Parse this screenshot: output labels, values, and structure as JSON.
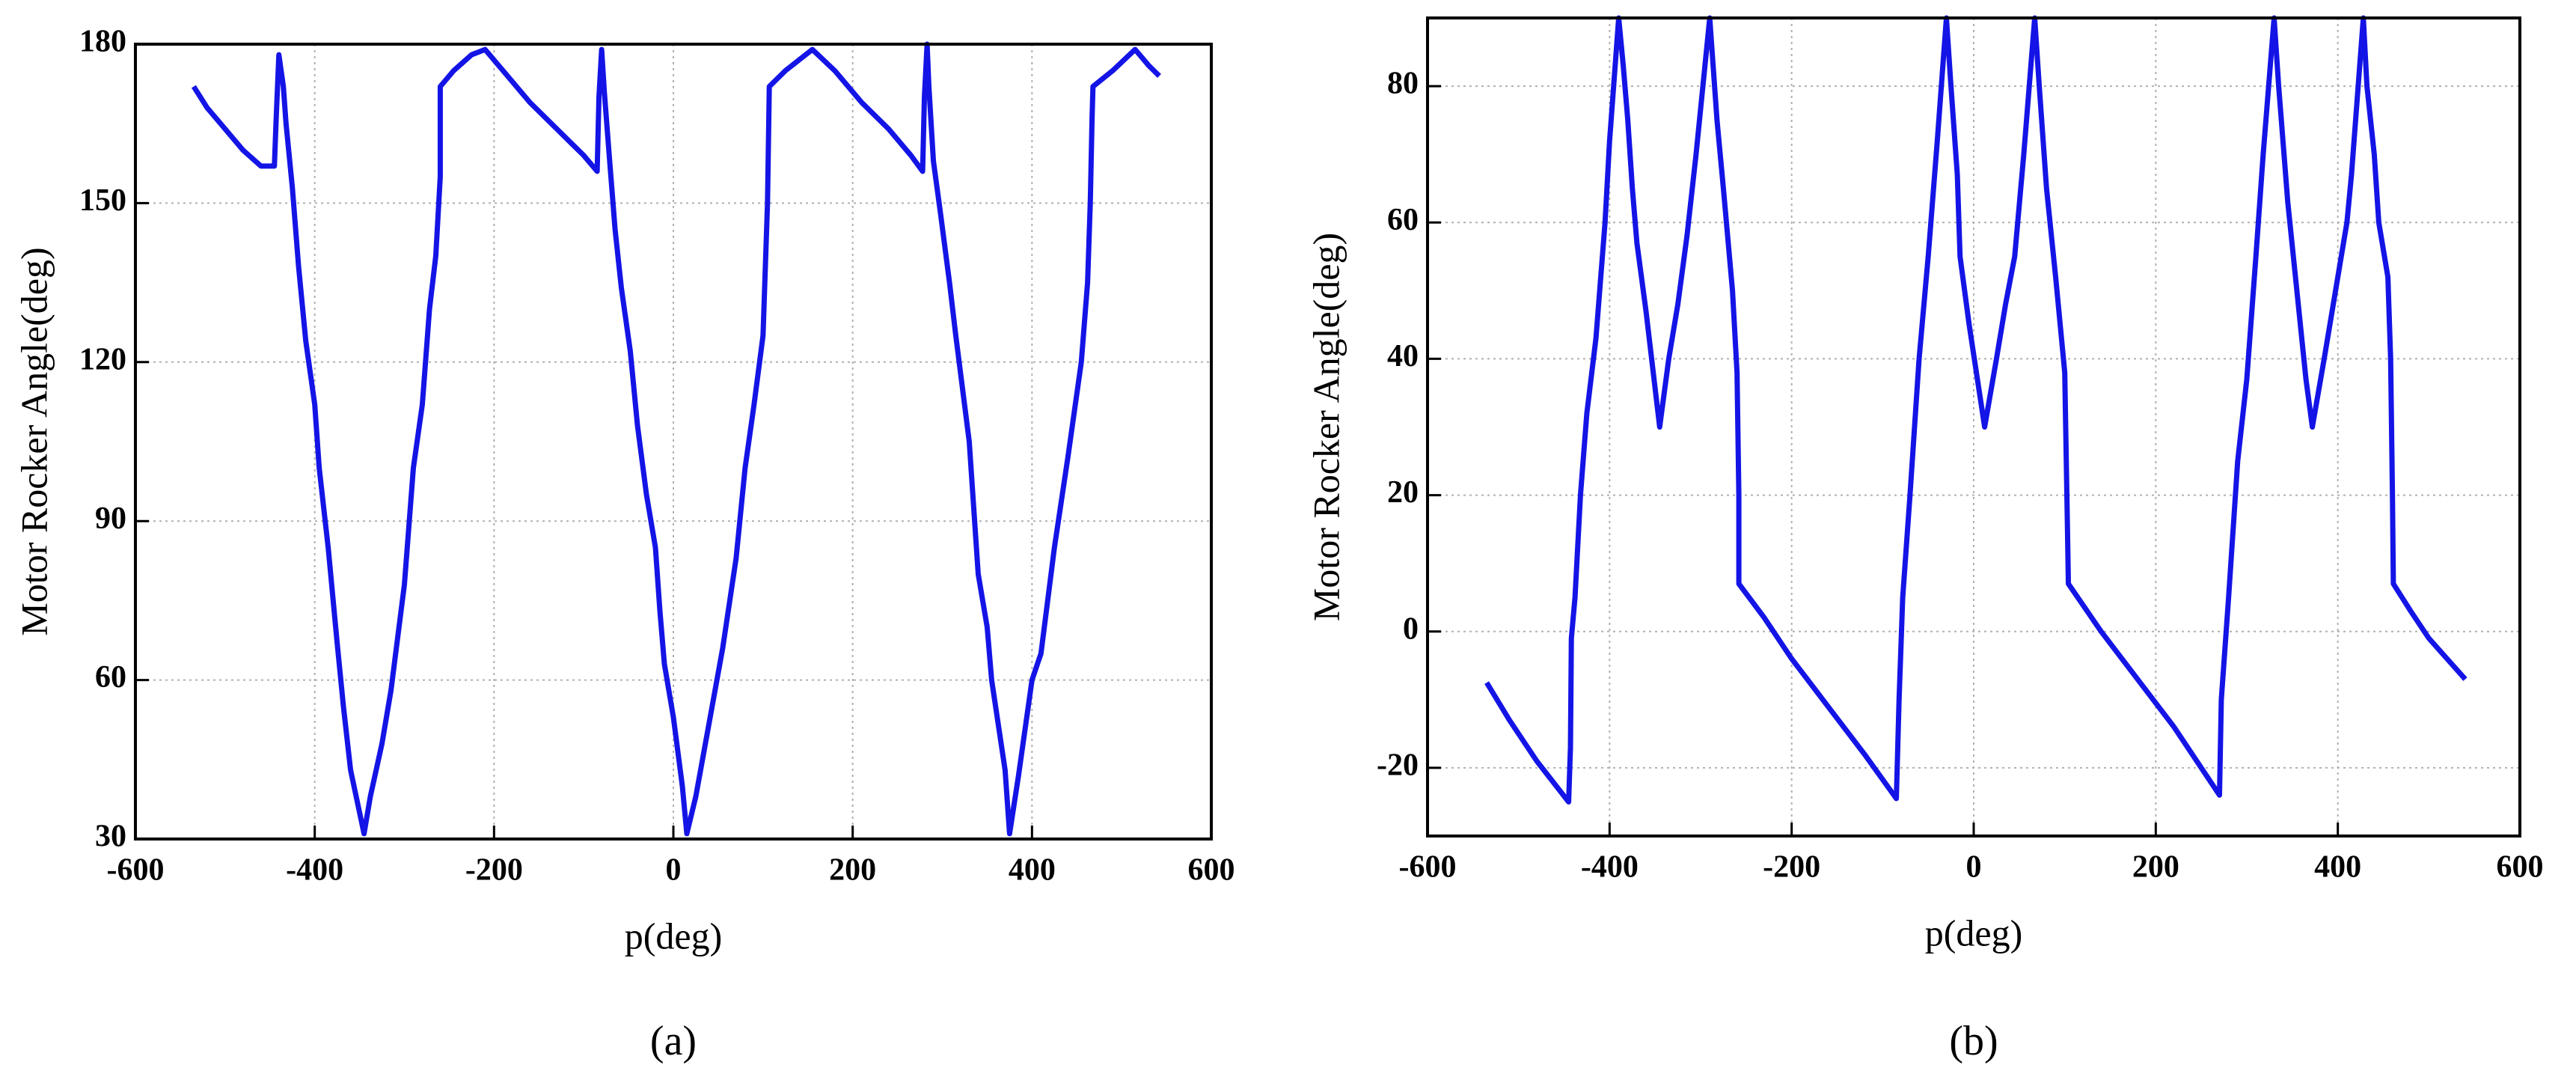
{
  "chart_data": [
    {
      "type": "line",
      "caption": "(a)",
      "xlabel": "p(deg)",
      "ylabel": "Motor Rocker Angle(deg)",
      "xlim": [
        -600,
        600
      ],
      "xticks": [
        -600,
        -400,
        -200,
        0,
        200,
        400,
        600
      ],
      "ylim": [
        30,
        180
      ],
      "yticks": [
        30,
        60,
        90,
        120,
        150,
        180
      ],
      "grid": true,
      "color": "#1414e6",
      "x": [
        -535,
        -520,
        -500,
        -480,
        -460,
        -445,
        -443,
        -440,
        -435,
        -432,
        -425,
        -418,
        -410,
        -400,
        -395,
        -385,
        -375,
        -368,
        -360,
        -345,
        -338,
        -325,
        -315,
        -300,
        -290,
        -280,
        -272,
        -265,
        -260,
        -260,
        -245,
        -225,
        -210,
        -190,
        -160,
        -130,
        -100,
        -85,
        -83,
        -80,
        -77,
        -72,
        -65,
        -58,
        -48,
        -40,
        -30,
        -20,
        -15,
        -10,
        0,
        10,
        15,
        25,
        40,
        55,
        70,
        80,
        90,
        100,
        105,
        107,
        125,
        155,
        180,
        210,
        240,
        265,
        278,
        280,
        283,
        285,
        290,
        298,
        308,
        315,
        330,
        340,
        350,
        355,
        370,
        375,
        385,
        400,
        410,
        425,
        440,
        455,
        462,
        465,
        467,
        468,
        490,
        515,
        530,
        542
      ],
      "values": [
        172,
        168,
        164,
        160,
        157,
        157,
        166,
        178,
        172,
        165,
        153,
        138,
        124,
        112,
        100,
        85,
        67,
        55,
        43,
        31,
        38,
        48,
        58,
        78,
        100,
        112,
        130,
        140,
        155,
        172,
        175,
        178,
        179,
        175,
        169,
        164,
        159,
        156,
        170,
        179,
        171,
        160,
        145,
        134,
        122,
        108,
        95,
        85,
        73,
        63,
        53,
        40,
        31,
        38,
        52,
        66,
        83,
        100,
        112,
        125,
        150,
        172,
        175,
        179,
        175,
        169,
        164,
        159,
        156,
        170,
        180,
        172,
        158,
        148,
        135,
        125,
        105,
        80,
        70,
        60,
        43,
        31,
        42,
        60,
        65,
        85,
        102,
        120,
        135,
        150,
        166,
        172,
        175,
        179,
        176,
        174
      ]
    },
    {
      "type": "line",
      "caption": "(b)",
      "xlabel": "p(deg)",
      "ylabel": "Motor Rocker Angle(deg)",
      "xlim": [
        -600,
        600
      ],
      "xticks": [
        -600,
        -400,
        -200,
        0,
        200,
        400,
        600
      ],
      "ylim": [
        -30,
        90
      ],
      "yticks": [
        -20,
        0,
        20,
        40,
        60,
        80
      ],
      "grid": true,
      "color": "#1414e6",
      "x": [
        -535,
        -510,
        -480,
        -445,
        -443,
        -442,
        -438,
        -432,
        -425,
        -415,
        -405,
        -400,
        -390,
        -385,
        -380,
        -375,
        -370,
        -360,
        -345,
        -335,
        -325,
        -315,
        -305,
        -290,
        -282,
        -275,
        -265,
        -260,
        -258,
        -258,
        -230,
        -200,
        -160,
        -120,
        -85,
        -82,
        -78,
        -70,
        -60,
        -50,
        -40,
        -30,
        -25,
        -18,
        -15,
        -5,
        12,
        25,
        35,
        45,
        55,
        67,
        72,
        80,
        90,
        100,
        103,
        104,
        140,
        180,
        220,
        250,
        270,
        272,
        280,
        290,
        300,
        310,
        318,
        330,
        335,
        345,
        355,
        365,
        372,
        385,
        400,
        410,
        415,
        428,
        432,
        440,
        445,
        455,
        458,
        460,
        461,
        480,
        500,
        520,
        540
      ],
      "values": [
        -7.5,
        -13,
        -19,
        -25,
        -17,
        -1,
        5,
        20,
        32,
        43,
        60,
        72,
        90,
        83,
        75,
        65,
        57,
        47,
        30,
        40,
        48,
        58,
        70,
        90,
        75,
        65,
        50,
        38,
        20,
        7,
        2,
        -4,
        -11,
        -18,
        -24.5,
        -10,
        5,
        20,
        40,
        55,
        72,
        90,
        80,
        67,
        55,
        45,
        30,
        40,
        48,
        55,
        70,
        90,
        80,
        65,
        52,
        38,
        15,
        7,
        0,
        -7,
        -14,
        -20,
        -24,
        -10,
        5,
        25,
        37,
        55,
        70,
        90,
        80,
        63,
        50,
        37,
        30,
        40,
        52,
        60,
        67,
        90,
        80,
        70,
        60,
        52,
        40,
        20,
        7,
        3,
        -1,
        -4,
        -7
      ]
    }
  ]
}
